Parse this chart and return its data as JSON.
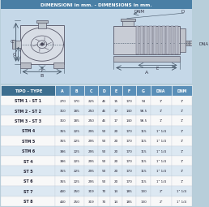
{
  "title": "DIMENSIONI in mm. - DIMENSIONS in mm.",
  "header": [
    "TIPO - TYPE",
    "A",
    "B",
    "C",
    "D",
    "E",
    "F",
    "G",
    "DNA",
    "DNM"
  ],
  "rows": [
    [
      "STM 1 - ST 1",
      "270",
      "170",
      "225",
      "46",
      "15",
      "170",
      "94",
      "1\"",
      "1\""
    ],
    [
      "STM 2 - ST 2",
      "310",
      "185",
      "250",
      "46",
      "17",
      "140",
      "98.5",
      "1\"",
      "1\""
    ],
    [
      "STM 3 - ST 3",
      "310",
      "185",
      "250",
      "46",
      "17",
      "140",
      "98.5",
      "1\"",
      "1\""
    ],
    [
      "STM 4",
      "355",
      "225",
      "295",
      "50",
      "20",
      "170",
      "115",
      "1\" 1/4",
      "1\""
    ],
    [
      "STM 5",
      "355",
      "225",
      "295",
      "50",
      "20",
      "170",
      "115",
      "1\" 1/4",
      "1\""
    ],
    [
      "STM 6",
      "386",
      "225",
      "295",
      "50",
      "20",
      "170",
      "115",
      "1\" 1/4",
      "1\""
    ],
    [
      "ST 4",
      "386",
      "225",
      "295",
      "50",
      "20",
      "170",
      "115",
      "1\" 1/4",
      "1\""
    ],
    [
      "ST 5",
      "355",
      "225",
      "295",
      "50",
      "20",
      "170",
      "115",
      "1\" 1/4",
      "1\""
    ],
    [
      "ST 6",
      "355",
      "225",
      "295",
      "50",
      "20",
      "170",
      "115",
      "1\" 1/4",
      "1\""
    ],
    [
      "ST 7",
      "440",
      "250",
      "319",
      "70",
      "14",
      "185",
      "130",
      "2\"",
      "1\" 1/4"
    ],
    [
      "ST 8",
      "440",
      "250",
      "319",
      "70",
      "14",
      "185",
      "130",
      "2\"",
      "1\" 1/4"
    ]
  ],
  "header_bg": "#5a8fb8",
  "header_fg": "#ffffff",
  "tipo_col_bg": "#3d6e8f",
  "row_bg_white": "#f8f8f8",
  "row_bg_blue": "#dce8f2",
  "diagram_bg": "#c5d8e8",
  "title_bar_bg": "#4a7fa5",
  "title_fg": "#ffffff",
  "outer_bg": "#b8ceda",
  "line_color": "#555566",
  "dim_line_color": "#445566"
}
